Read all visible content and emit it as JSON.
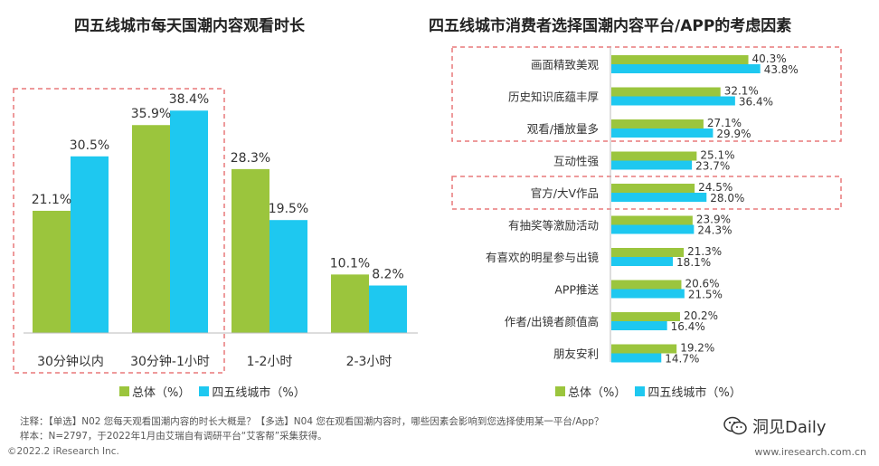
{
  "title_left": "四五线城市每天国潮内容观看时长",
  "title_right": "四五线城市消费者选择国潮内容平台/APP的考虑因素",
  "colors": {
    "total": "#9BC53D",
    "city": "#1EC8F0",
    "highlight": "#E8787A"
  },
  "legend": {
    "total": "总体（%）",
    "city": "四五线城市（%）"
  },
  "chart_data": [
    {
      "type": "bar",
      "title": "四五线城市每天国潮内容观看时长",
      "categories": [
        "30分钟以内",
        "30分钟-1小时",
        "1-2小时",
        "2-3小时"
      ],
      "series": [
        {
          "name": "总体（%）",
          "values": [
            21.1,
            35.9,
            28.3,
            10.1
          ]
        },
        {
          "name": "四五线城市（%）",
          "values": [
            30.5,
            38.4,
            19.5,
            8.2
          ]
        }
      ],
      "value_labels": {
        "total": [
          "21.1%",
          "35.9%",
          "28.3%",
          "10.1%"
        ],
        "city": [
          "30.5%",
          "38.4%",
          "19.5%",
          "8.2%"
        ]
      },
      "ylim": [
        0,
        45
      ],
      "highlighted_categories": [
        "30分钟以内",
        "30分钟-1小时"
      ]
    },
    {
      "type": "bar",
      "orientation": "horizontal",
      "title": "四五线城市消费者选择国潮内容平台/APP的考虑因素",
      "categories": [
        "画面精致美观",
        "历史知识底蕴丰厚",
        "观看/播放量多",
        "互动性强",
        "官方/大V作品",
        "有抽奖等激励活动",
        "有喜欢的明星参与出镜",
        "APP推送",
        "作者/出镜者颜值高",
        "朋友安利"
      ],
      "series": [
        {
          "name": "总体（%）",
          "values": [
            40.3,
            32.1,
            27.1,
            25.1,
            24.5,
            23.9,
            21.3,
            20.6,
            20.2,
            19.2
          ]
        },
        {
          "name": "四五线城市（%）",
          "values": [
            43.8,
            36.4,
            29.9,
            23.7,
            28.0,
            24.3,
            18.1,
            21.5,
            16.4,
            14.7
          ]
        }
      ],
      "value_labels": {
        "total": [
          "40.3%",
          "32.1%",
          "27.1%",
          "25.1%",
          "24.5%",
          "23.9%",
          "21.3%",
          "20.6%",
          "20.2%",
          "19.2%"
        ],
        "city": [
          "43.8%",
          "36.4%",
          "29.9%",
          "23.7%",
          "28.0%",
          "24.3%",
          "18.1%",
          "21.5%",
          "16.4%",
          "14.7%"
        ]
      },
      "xlim": [
        0,
        50
      ],
      "highlighted_categories": [
        "画面精致美观",
        "历史知识底蕴丰厚",
        "观看/播放量多",
        "官方/大V作品"
      ]
    }
  ],
  "footer": {
    "note_1": "注释：【单选】N02 您每天观看国潮内容的时长大概是？【多选】N04 您在观看国潮内容时，哪些因素会影响到您选择使用某一平台/App？",
    "note_2": "样本：N=2797，于2022年1月由艾瑞自有调研平台“艾客帮”采集获得。",
    "copyright": "©2022.2 iResearch Inc.",
    "website": "www.iresearch.com.cn",
    "wechat": "洞见Daily"
  }
}
